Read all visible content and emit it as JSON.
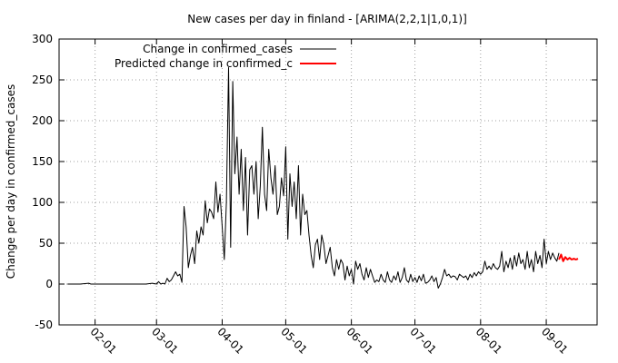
{
  "chart_data": {
    "type": "line",
    "title": "New cases per day in finland -  [ARIMA(2,2,1|1,0,1)]",
    "xlabel": "",
    "ylabel": "Change per day in confirmed_cases",
    "ylim": [
      -50,
      300
    ],
    "yticks": [
      -50,
      0,
      50,
      100,
      150,
      200,
      250,
      300
    ],
    "xlim": [
      "2020-01-15",
      "2020-09-25"
    ],
    "xticks": [
      {
        "date": "2020-02-01",
        "label": "02-01"
      },
      {
        "date": "2020-03-01",
        "label": "03-01"
      },
      {
        "date": "2020-04-01",
        "label": "04-01"
      },
      {
        "date": "2020-05-01",
        "label": "05-01"
      },
      {
        "date": "2020-06-01",
        "label": "06-01"
      },
      {
        "date": "2020-07-01",
        "label": "07-01"
      },
      {
        "date": "2020-08-01",
        "label": "08-01"
      },
      {
        "date": "2020-09-01",
        "label": "09-01"
      }
    ],
    "grid": true,
    "legend_position": "top-left",
    "series": [
      {
        "name": "Change in confirmed_cases",
        "color": "#000000",
        "points": [
          [
            "2020-01-19",
            0
          ],
          [
            "2020-01-25",
            0
          ],
          [
            "2020-01-29",
            1
          ],
          [
            "2020-01-30",
            0
          ],
          [
            "2020-02-25",
            0
          ],
          [
            "2020-02-28",
            1
          ],
          [
            "2020-03-01",
            0
          ],
          [
            "2020-03-02",
            3
          ],
          [
            "2020-03-03",
            0
          ],
          [
            "2020-03-04",
            1
          ],
          [
            "2020-03-05",
            0
          ],
          [
            "2020-03-06",
            7
          ],
          [
            "2020-03-07",
            3
          ],
          [
            "2020-03-08",
            5
          ],
          [
            "2020-03-09",
            10
          ],
          [
            "2020-03-10",
            15
          ],
          [
            "2020-03-11",
            10
          ],
          [
            "2020-03-12",
            12
          ],
          [
            "2020-03-13",
            2
          ],
          [
            "2020-03-14",
            95
          ],
          [
            "2020-03-15",
            70
          ],
          [
            "2020-03-16",
            20
          ],
          [
            "2020-03-17",
            35
          ],
          [
            "2020-03-18",
            45
          ],
          [
            "2020-03-19",
            25
          ],
          [
            "2020-03-20",
            65
          ],
          [
            "2020-03-21",
            50
          ],
          [
            "2020-03-22",
            70
          ],
          [
            "2020-03-23",
            60
          ],
          [
            "2020-03-24",
            102
          ],
          [
            "2020-03-25",
            75
          ],
          [
            "2020-03-26",
            92
          ],
          [
            "2020-03-27",
            88
          ],
          [
            "2020-03-28",
            80
          ],
          [
            "2020-03-29",
            125
          ],
          [
            "2020-03-30",
            88
          ],
          [
            "2020-03-31",
            110
          ],
          [
            "2020-04-01",
            70
          ],
          [
            "2020-04-02",
            30
          ],
          [
            "2020-04-03",
            100
          ],
          [
            "2020-04-04",
            265
          ],
          [
            "2020-04-05",
            45
          ],
          [
            "2020-04-06",
            248
          ],
          [
            "2020-04-07",
            135
          ],
          [
            "2020-04-08",
            180
          ],
          [
            "2020-04-09",
            110
          ],
          [
            "2020-04-10",
            165
          ],
          [
            "2020-04-11",
            90
          ],
          [
            "2020-04-12",
            155
          ],
          [
            "2020-04-13",
            60
          ],
          [
            "2020-04-14",
            140
          ],
          [
            "2020-04-15",
            145
          ],
          [
            "2020-04-16",
            110
          ],
          [
            "2020-04-17",
            150
          ],
          [
            "2020-04-18",
            80
          ],
          [
            "2020-04-19",
            120
          ],
          [
            "2020-04-20",
            192
          ],
          [
            "2020-04-21",
            110
          ],
          [
            "2020-04-22",
            90
          ],
          [
            "2020-04-23",
            165
          ],
          [
            "2020-04-24",
            130
          ],
          [
            "2020-04-25",
            110
          ],
          [
            "2020-04-26",
            145
          ],
          [
            "2020-04-27",
            85
          ],
          [
            "2020-04-28",
            95
          ],
          [
            "2020-04-29",
            130
          ],
          [
            "2020-04-30",
            108
          ],
          [
            "2020-05-01",
            168
          ],
          [
            "2020-05-02",
            55
          ],
          [
            "2020-05-03",
            135
          ],
          [
            "2020-05-04",
            95
          ],
          [
            "2020-05-05",
            125
          ],
          [
            "2020-05-06",
            80
          ],
          [
            "2020-05-07",
            145
          ],
          [
            "2020-05-08",
            60
          ],
          [
            "2020-05-09",
            110
          ],
          [
            "2020-05-10",
            85
          ],
          [
            "2020-05-11",
            90
          ],
          [
            "2020-05-12",
            60
          ],
          [
            "2020-05-13",
            35
          ],
          [
            "2020-05-14",
            20
          ],
          [
            "2020-05-15",
            48
          ],
          [
            "2020-05-16",
            55
          ],
          [
            "2020-05-17",
            30
          ],
          [
            "2020-05-18",
            60
          ],
          [
            "2020-05-19",
            48
          ],
          [
            "2020-05-20",
            25
          ],
          [
            "2020-05-21",
            35
          ],
          [
            "2020-05-22",
            45
          ],
          [
            "2020-05-23",
            20
          ],
          [
            "2020-05-24",
            10
          ],
          [
            "2020-05-25",
            30
          ],
          [
            "2020-05-26",
            18
          ],
          [
            "2020-05-27",
            30
          ],
          [
            "2020-05-28",
            25
          ],
          [
            "2020-05-29",
            5
          ],
          [
            "2020-05-30",
            22
          ],
          [
            "2020-05-31",
            10
          ],
          [
            "2020-06-01",
            18
          ],
          [
            "2020-06-02",
            0
          ],
          [
            "2020-06-03",
            28
          ],
          [
            "2020-06-04",
            18
          ],
          [
            "2020-06-05",
            25
          ],
          [
            "2020-06-06",
            12
          ],
          [
            "2020-06-07",
            5
          ],
          [
            "2020-06-08",
            20
          ],
          [
            "2020-06-09",
            8
          ],
          [
            "2020-06-10",
            18
          ],
          [
            "2020-06-11",
            10
          ],
          [
            "2020-06-12",
            2
          ],
          [
            "2020-06-13",
            5
          ],
          [
            "2020-06-14",
            3
          ],
          [
            "2020-06-15",
            12
          ],
          [
            "2020-06-16",
            5
          ],
          [
            "2020-06-17",
            2
          ],
          [
            "2020-06-18",
            15
          ],
          [
            "2020-06-19",
            5
          ],
          [
            "2020-06-20",
            2
          ],
          [
            "2020-06-21",
            10
          ],
          [
            "2020-06-22",
            5
          ],
          [
            "2020-06-23",
            15
          ],
          [
            "2020-06-24",
            2
          ],
          [
            "2020-06-25",
            8
          ],
          [
            "2020-06-26",
            20
          ],
          [
            "2020-06-27",
            5
          ],
          [
            "2020-06-28",
            2
          ],
          [
            "2020-06-29",
            12
          ],
          [
            "2020-06-30",
            3
          ],
          [
            "2020-07-01",
            8
          ],
          [
            "2020-07-02",
            2
          ],
          [
            "2020-07-03",
            10
          ],
          [
            "2020-07-04",
            4
          ],
          [
            "2020-07-05",
            12
          ],
          [
            "2020-07-06",
            1
          ],
          [
            "2020-07-07",
            2
          ],
          [
            "2020-07-08",
            5
          ],
          [
            "2020-07-09",
            10
          ],
          [
            "2020-07-10",
            3
          ],
          [
            "2020-07-11",
            8
          ],
          [
            "2020-07-12",
            -5
          ],
          [
            "2020-07-13",
            0
          ],
          [
            "2020-07-14",
            8
          ],
          [
            "2020-07-15",
            18
          ],
          [
            "2020-07-16",
            10
          ],
          [
            "2020-07-17",
            12
          ],
          [
            "2020-07-18",
            8
          ],
          [
            "2020-07-19",
            10
          ],
          [
            "2020-07-20",
            9
          ],
          [
            "2020-07-21",
            5
          ],
          [
            "2020-07-22",
            12
          ],
          [
            "2020-07-23",
            10
          ],
          [
            "2020-07-24",
            8
          ],
          [
            "2020-07-25",
            10
          ],
          [
            "2020-07-26",
            5
          ],
          [
            "2020-07-27",
            12
          ],
          [
            "2020-07-28",
            8
          ],
          [
            "2020-07-29",
            14
          ],
          [
            "2020-07-30",
            10
          ],
          [
            "2020-07-31",
            15
          ],
          [
            "2020-08-01",
            12
          ],
          [
            "2020-08-02",
            15
          ],
          [
            "2020-08-03",
            28
          ],
          [
            "2020-08-04",
            18
          ],
          [
            "2020-08-05",
            22
          ],
          [
            "2020-08-06",
            18
          ],
          [
            "2020-08-07",
            25
          ],
          [
            "2020-08-08",
            20
          ],
          [
            "2020-08-09",
            18
          ],
          [
            "2020-08-10",
            22
          ],
          [
            "2020-08-11",
            40
          ],
          [
            "2020-08-12",
            15
          ],
          [
            "2020-08-13",
            28
          ],
          [
            "2020-08-14",
            20
          ],
          [
            "2020-08-15",
            32
          ],
          [
            "2020-08-16",
            18
          ],
          [
            "2020-08-17",
            35
          ],
          [
            "2020-08-18",
            22
          ],
          [
            "2020-08-19",
            38
          ],
          [
            "2020-08-20",
            25
          ],
          [
            "2020-08-21",
            30
          ],
          [
            "2020-08-22",
            18
          ],
          [
            "2020-08-23",
            40
          ],
          [
            "2020-08-24",
            20
          ],
          [
            "2020-08-25",
            30
          ],
          [
            "2020-08-26",
            15
          ],
          [
            "2020-08-27",
            40
          ],
          [
            "2020-08-28",
            25
          ],
          [
            "2020-08-29",
            35
          ],
          [
            "2020-08-30",
            20
          ],
          [
            "2020-08-31",
            55
          ],
          [
            "2020-09-01",
            25
          ],
          [
            "2020-09-02",
            40
          ],
          [
            "2020-09-03",
            30
          ],
          [
            "2020-09-04",
            38
          ],
          [
            "2020-09-05",
            32
          ],
          [
            "2020-09-06",
            28
          ],
          [
            "2020-09-07",
            38
          ]
        ]
      },
      {
        "name": "Predicted change in confirmed_c",
        "color": "#ff0000",
        "points": [
          [
            "2020-09-07",
            30
          ],
          [
            "2020-09-08",
            36
          ],
          [
            "2020-09-09",
            28
          ],
          [
            "2020-09-10",
            33
          ],
          [
            "2020-09-11",
            30
          ],
          [
            "2020-09-12",
            32
          ],
          [
            "2020-09-13",
            30
          ],
          [
            "2020-09-14",
            31
          ],
          [
            "2020-09-15",
            30
          ],
          [
            "2020-09-16",
            31
          ]
        ]
      }
    ]
  }
}
